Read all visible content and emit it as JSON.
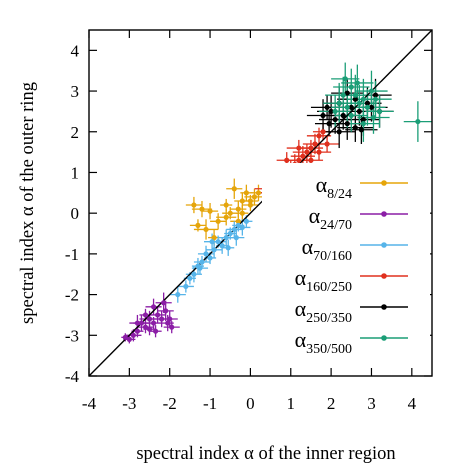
{
  "chart_data": {
    "type": "scatter",
    "xlabel": "spectral index α of the inner region",
    "ylabel": "spectral index α of the outer ring",
    "xlim": [
      -4,
      4.5
    ],
    "ylim": [
      -4,
      4.5
    ],
    "xticks": [
      -4,
      -3,
      -2,
      -1,
      0,
      1,
      2,
      3,
      4
    ],
    "yticks": [
      -4,
      -3,
      -2,
      -1,
      0,
      1,
      2,
      3,
      4
    ],
    "tick_labels": [
      "-4",
      "-3",
      "-2",
      "-1",
      "0",
      "1",
      "2",
      "3",
      "4"
    ],
    "reference_line": "y = x",
    "legend_position": "right",
    "series": [
      {
        "base": "α",
        "sub": "8/24",
        "color": "#e5a50a",
        "points": [
          [
            -1.4,
            0.2
          ],
          [
            -1.2,
            0.1
          ],
          [
            -1.3,
            -0.3
          ],
          [
            -1.1,
            -0.4
          ],
          [
            -0.9,
            -0.6
          ],
          [
            -0.8,
            -0.2
          ],
          [
            -0.6,
            -0.1
          ],
          [
            -0.5,
            0.0
          ],
          [
            -0.3,
            0.1
          ],
          [
            -0.2,
            0.3
          ],
          [
            -0.1,
            0.5
          ],
          [
            0.0,
            0.2
          ],
          [
            0.1,
            0.4
          ],
          [
            0.2,
            0.5
          ],
          [
            -0.4,
            0.6
          ],
          [
            -0.6,
            0.2
          ],
          [
            -1.0,
            0.05
          ],
          [
            -0.2,
            0.0
          ],
          [
            0.0,
            0.3
          ],
          [
            -0.3,
            -0.2
          ]
        ],
        "errors": [
          [
            0.2,
            0.2
          ],
          [
            0.25,
            0.2
          ],
          [
            0.2,
            0.15
          ],
          [
            0.3,
            0.25
          ],
          [
            0.15,
            0.2
          ],
          [
            0.2,
            0.2
          ],
          [
            0.25,
            0.2
          ],
          [
            0.2,
            0.15
          ],
          [
            0.2,
            0.2
          ],
          [
            0.2,
            0.2
          ],
          [
            0.15,
            0.2
          ],
          [
            0.2,
            0.15
          ],
          [
            0.25,
            0.2
          ],
          [
            0.2,
            0.2
          ],
          [
            0.2,
            0.25
          ],
          [
            0.15,
            0.15
          ],
          [
            0.2,
            0.2
          ],
          [
            0.15,
            0.2
          ],
          [
            0.2,
            0.15
          ],
          [
            0.2,
            0.2
          ]
        ]
      },
      {
        "base": "α",
        "sub": "24/70",
        "color": "#8b1ea6",
        "points": [
          [
            -3.0,
            -3.1
          ],
          [
            -2.9,
            -3.0
          ],
          [
            -2.8,
            -2.9
          ],
          [
            -2.7,
            -2.7
          ],
          [
            -2.6,
            -2.8
          ],
          [
            -2.5,
            -2.6
          ],
          [
            -2.4,
            -2.7
          ],
          [
            -2.3,
            -2.5
          ],
          [
            -2.2,
            -2.6
          ],
          [
            -2.1,
            -2.4
          ],
          [
            -2.0,
            -2.6
          ],
          [
            -2.05,
            -2.7
          ],
          [
            -1.95,
            -2.8
          ],
          [
            -2.4,
            -2.3
          ],
          [
            -2.6,
            -2.5
          ],
          [
            -2.8,
            -2.7
          ],
          [
            -2.35,
            -2.9
          ],
          [
            -2.15,
            -2.2
          ],
          [
            -2.5,
            -2.85
          ],
          [
            -3.1,
            -3.05
          ]
        ],
        "errors": [
          [
            0.15,
            0.1
          ],
          [
            0.2,
            0.15
          ],
          [
            0.15,
            0.15
          ],
          [
            0.2,
            0.2
          ],
          [
            0.2,
            0.15
          ],
          [
            0.25,
            0.2
          ],
          [
            0.2,
            0.15
          ],
          [
            0.2,
            0.2
          ],
          [
            0.25,
            0.2
          ],
          [
            0.2,
            0.25
          ],
          [
            0.2,
            0.2
          ],
          [
            0.15,
            0.2
          ],
          [
            0.2,
            0.15
          ],
          [
            0.2,
            0.2
          ],
          [
            0.15,
            0.15
          ],
          [
            0.2,
            0.2
          ],
          [
            0.15,
            0.15
          ],
          [
            0.2,
            0.25
          ],
          [
            0.15,
            0.15
          ],
          [
            0.1,
            0.1
          ]
        ]
      },
      {
        "base": "α",
        "sub": "70/160",
        "color": "#56b4e9",
        "points": [
          [
            -1.8,
            -2.0
          ],
          [
            -1.6,
            -1.8
          ],
          [
            -1.5,
            -1.6
          ],
          [
            -1.4,
            -1.5
          ],
          [
            -1.3,
            -1.3
          ],
          [
            -1.2,
            -1.2
          ],
          [
            -1.1,
            -1.0
          ],
          [
            -1.0,
            -1.1
          ],
          [
            -0.9,
            -0.9
          ],
          [
            -0.8,
            -0.7
          ],
          [
            -0.7,
            -0.8
          ],
          [
            -0.6,
            -0.6
          ],
          [
            -0.5,
            -0.5
          ],
          [
            -0.4,
            -0.4
          ],
          [
            -0.3,
            -0.3
          ],
          [
            -0.2,
            -0.35
          ],
          [
            -0.1,
            -0.2
          ],
          [
            -0.95,
            -0.7
          ],
          [
            -0.55,
            -0.85
          ],
          [
            -1.25,
            -1.35
          ],
          [
            -0.35,
            -0.6
          ]
        ],
        "errors": [
          [
            0.2,
            0.2
          ],
          [
            0.2,
            0.15
          ],
          [
            0.15,
            0.15
          ],
          [
            0.2,
            0.2
          ],
          [
            0.15,
            0.2
          ],
          [
            0.2,
            0.15
          ],
          [
            0.2,
            0.2
          ],
          [
            0.15,
            0.15
          ],
          [
            0.2,
            0.2
          ],
          [
            0.2,
            0.15
          ],
          [
            0.15,
            0.2
          ],
          [
            0.2,
            0.2
          ],
          [
            0.15,
            0.15
          ],
          [
            0.2,
            0.2
          ],
          [
            0.15,
            0.15
          ],
          [
            0.2,
            0.2
          ],
          [
            0.15,
            0.15
          ],
          [
            0.2,
            0.2
          ],
          [
            0.15,
            0.2
          ],
          [
            0.2,
            0.15
          ],
          [
            0.2,
            0.2
          ]
        ]
      },
      {
        "base": "α",
        "sub": "160/250",
        "color": "#e0301e",
        "points": [
          [
            0.4,
            0.6
          ],
          [
            0.5,
            0.5
          ],
          [
            0.6,
            0.7
          ],
          [
            0.7,
            0.9
          ],
          [
            0.8,
            0.8
          ],
          [
            0.9,
            1.0
          ],
          [
            1.0,
            1.1
          ],
          [
            1.1,
            1.2
          ],
          [
            1.2,
            1.3
          ],
          [
            1.3,
            1.4
          ],
          [
            1.4,
            1.5
          ],
          [
            1.5,
            1.6
          ],
          [
            1.6,
            1.7
          ],
          [
            1.7,
            1.9
          ],
          [
            1.8,
            2.0
          ],
          [
            1.1,
            0.9
          ],
          [
            1.3,
            1.0
          ],
          [
            1.5,
            1.3
          ],
          [
            1.7,
            1.5
          ],
          [
            0.9,
            1.3
          ],
          [
            1.2,
            1.6
          ],
          [
            0.6,
            0.9
          ],
          [
            1.9,
            1.7
          ],
          [
            1.4,
            1.15
          ]
        ],
        "errors": [
          [
            0.3,
            0.15
          ],
          [
            0.25,
            0.2
          ],
          [
            0.3,
            0.2
          ],
          [
            0.3,
            0.2
          ],
          [
            0.25,
            0.2
          ],
          [
            0.3,
            0.25
          ],
          [
            0.3,
            0.2
          ],
          [
            0.35,
            0.25
          ],
          [
            0.3,
            0.2
          ],
          [
            0.3,
            0.25
          ],
          [
            0.35,
            0.2
          ],
          [
            0.3,
            0.2
          ],
          [
            0.3,
            0.25
          ],
          [
            0.3,
            0.2
          ],
          [
            0.25,
            0.2
          ],
          [
            0.3,
            0.2
          ],
          [
            0.35,
            0.25
          ],
          [
            0.3,
            0.2
          ],
          [
            0.3,
            0.2
          ],
          [
            0.25,
            0.2
          ],
          [
            0.3,
            0.2
          ],
          [
            0.25,
            0.2
          ],
          [
            0.3,
            0.2
          ],
          [
            0.3,
            0.2
          ]
        ]
      },
      {
        "base": "α",
        "sub": "250/350",
        "color": "#000000",
        "points": [
          [
            1.8,
            2.4
          ],
          [
            1.9,
            2.6
          ],
          [
            2.0,
            2.5
          ],
          [
            2.1,
            2.3
          ],
          [
            2.2,
            2.7
          ],
          [
            2.3,
            2.4
          ],
          [
            2.4,
            2.2
          ],
          [
            2.5,
            2.6
          ],
          [
            2.6,
            2.8
          ],
          [
            2.7,
            2.5
          ],
          [
            2.8,
            2.3
          ],
          [
            2.9,
            2.7
          ],
          [
            3.0,
            2.6
          ],
          [
            2.2,
            2.0
          ],
          [
            2.6,
            2.1
          ],
          [
            3.1,
            2.9
          ],
          [
            2.4,
            2.95
          ],
          [
            1.95,
            2.2
          ],
          [
            2.75,
            2.05
          ],
          [
            3.2,
            2.5
          ]
        ],
        "errors": [
          [
            0.4,
            0.4
          ],
          [
            0.4,
            0.3
          ],
          [
            0.35,
            0.4
          ],
          [
            0.4,
            0.35
          ],
          [
            0.4,
            0.4
          ],
          [
            0.45,
            0.35
          ],
          [
            0.4,
            0.4
          ],
          [
            0.4,
            0.35
          ],
          [
            0.45,
            0.4
          ],
          [
            0.4,
            0.35
          ],
          [
            0.4,
            0.4
          ],
          [
            0.35,
            0.4
          ],
          [
            0.4,
            0.35
          ],
          [
            0.4,
            0.4
          ],
          [
            0.45,
            0.35
          ],
          [
            0.4,
            0.4
          ],
          [
            0.4,
            0.35
          ],
          [
            0.35,
            0.3
          ],
          [
            0.4,
            0.35
          ],
          [
            0.35,
            0.4
          ]
        ]
      },
      {
        "base": "α",
        "sub": "350/500",
        "color": "#1b9e77",
        "points": [
          [
            2.1,
            2.5
          ],
          [
            2.2,
            2.7
          ],
          [
            2.3,
            2.9
          ],
          [
            2.4,
            2.6
          ],
          [
            2.5,
            3.1
          ],
          [
            2.6,
            2.9
          ],
          [
            2.7,
            2.7
          ],
          [
            2.8,
            2.8
          ],
          [
            2.9,
            2.6
          ],
          [
            3.0,
            3.0
          ],
          [
            3.1,
            2.8
          ],
          [
            3.2,
            2.5
          ],
          [
            2.5,
            2.4
          ],
          [
            2.8,
            2.2
          ],
          [
            2.35,
            3.3
          ],
          [
            3.05,
            2.35
          ],
          [
            2.65,
            3.2
          ],
          [
            4.15,
            2.25
          ]
        ],
        "errors": [
          [
            0.4,
            0.4
          ],
          [
            0.4,
            0.5
          ],
          [
            0.45,
            0.45
          ],
          [
            0.4,
            0.5
          ],
          [
            0.45,
            0.45
          ],
          [
            0.4,
            0.5
          ],
          [
            0.45,
            0.45
          ],
          [
            0.4,
            0.5
          ],
          [
            0.45,
            0.45
          ],
          [
            0.4,
            0.5
          ],
          [
            0.4,
            0.45
          ],
          [
            0.35,
            0.4
          ],
          [
            0.4,
            0.4
          ],
          [
            0.4,
            0.45
          ],
          [
            0.35,
            0.4
          ],
          [
            0.4,
            0.4
          ],
          [
            0.4,
            0.45
          ],
          [
            0.35,
            0.5
          ]
        ]
      }
    ]
  }
}
